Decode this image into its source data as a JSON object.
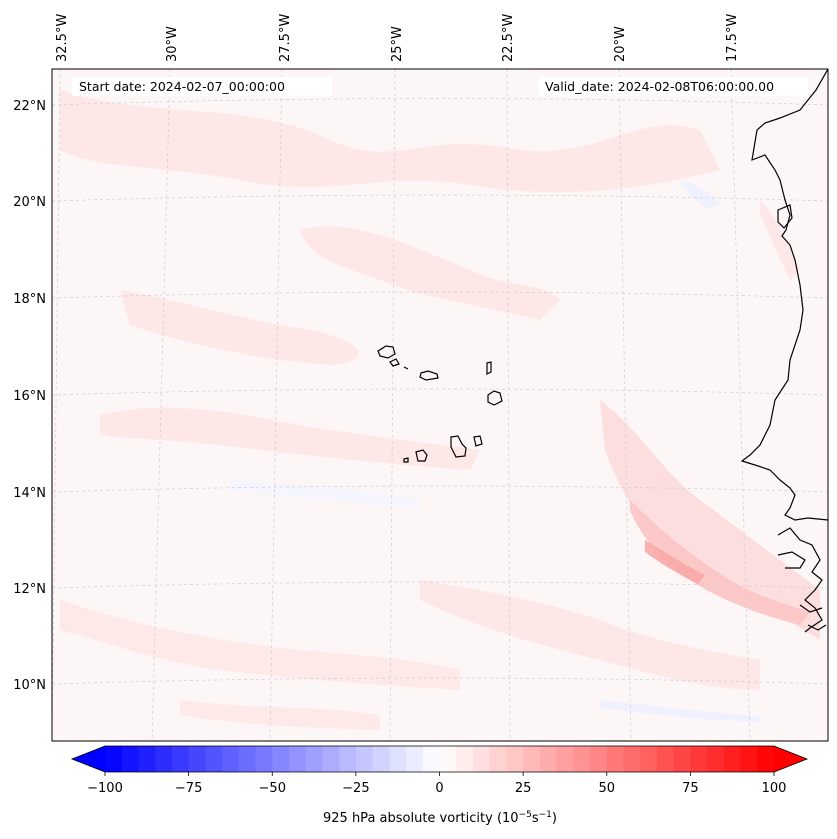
{
  "header": {
    "start_date": "Start date: 2024-02-07_00:00:00",
    "valid_date": "Valid_date: 2024-02-08T06:00:00.00"
  },
  "longitude_labels": [
    "32.5°W",
    "30°W",
    "27.5°W",
    "25°W",
    "22.5°W",
    "20°W",
    "17.5°W"
  ],
  "latitude_labels": [
    "22°N",
    "20°N",
    "18°N",
    "16°N",
    "14°N",
    "12°N",
    "10°N"
  ],
  "colorbar": {
    "ticks": [
      "−100",
      "−75",
      "−50",
      "−25",
      "0",
      "25",
      "50",
      "75",
      "100"
    ],
    "label": "925 hPa absolute vorticity (10",
    "label_exp1": "−5",
    "label_mid": "s",
    "label_exp2": "−1",
    "label_end": ")",
    "vmin": -100,
    "vmax": 100,
    "levels": 40,
    "cmap": "bwr",
    "colors": {
      "negative": "#0000ff",
      "zero": "#ffffff",
      "positive": "#ff0000"
    }
  },
  "map": {
    "coastline_color": "#000000",
    "grid_color": "#cccccc",
    "background_color": "#fdf6f6"
  }
}
